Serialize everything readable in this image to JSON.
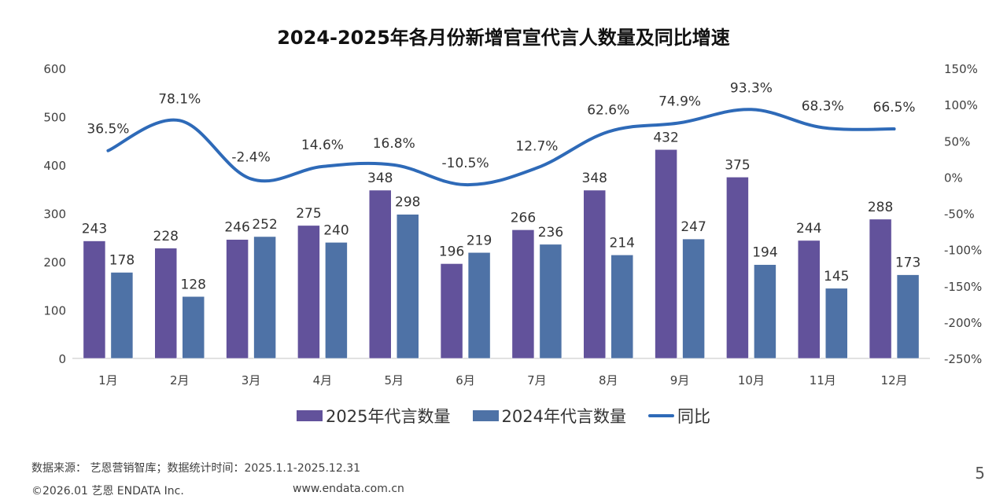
{
  "chart_data": {
    "type": "bar",
    "title": "2024-2025年各月份新增官宣代言人数量及同比增速",
    "categories": [
      "1月",
      "2月",
      "3月",
      "4月",
      "5月",
      "6月",
      "7月",
      "8月",
      "9月",
      "10月",
      "11月",
      "12月"
    ],
    "series": [
      {
        "name": "2025年代言数量",
        "type": "bar",
        "axis": "left",
        "color": "#62529b",
        "values": [
          243,
          228,
          246,
          275,
          348,
          196,
          266,
          348,
          432,
          375,
          244,
          288
        ]
      },
      {
        "name": "2024年代言数量",
        "type": "bar",
        "axis": "left",
        "color": "#4e72a6",
        "values": [
          178,
          128,
          252,
          240,
          298,
          219,
          236,
          214,
          247,
          194,
          145,
          173
        ]
      },
      {
        "name": "同比",
        "type": "line",
        "axis": "right",
        "color": "#2e6ab8",
        "smooth": true,
        "values": [
          36.5,
          78.1,
          -2.4,
          14.6,
          16.8,
          -10.5,
          12.7,
          62.6,
          74.9,
          93.3,
          68.3,
          66.5
        ],
        "labels": [
          "36.5%",
          "78.1%",
          "-2.4%",
          "14.6%",
          "16.8%",
          "-10.5%",
          "12.7%",
          "62.6%",
          "74.9%",
          "93.3%",
          "68.3%",
          "66.5%"
        ]
      }
    ],
    "y_left": {
      "range": [
        0,
        600
      ],
      "ticks": [
        0,
        100,
        200,
        300,
        400,
        500,
        600
      ],
      "tick_labels": [
        "0",
        "100",
        "200",
        "300",
        "400",
        "500",
        "600"
      ]
    },
    "y_right": {
      "range": [
        -250,
        150
      ],
      "ticks": [
        -250,
        -200,
        -150,
        -100,
        -50,
        0,
        50,
        100,
        150
      ],
      "tick_labels": [
        "-250%",
        "-200%",
        "-150%",
        "-100%",
        "-50%",
        "0%",
        "50%",
        "100%",
        "150%"
      ]
    },
    "xlabel": "",
    "ylabel": "",
    "grid": false,
    "legend": "bottom"
  },
  "legend": {
    "items": [
      {
        "label": "2025年代言数量",
        "color": "#62529b",
        "kind": "box"
      },
      {
        "label": "2024年代言数量",
        "color": "#4e72a6",
        "kind": "box"
      },
      {
        "label": "同比",
        "color": "#2e6ab8",
        "kind": "line"
      }
    ]
  },
  "footer": {
    "source": "数据来源： 艺恩营销智库；数据统计时间：2025.1.1-2025.12.31",
    "copyright": "©2026.01 艺恩 ENDATA Inc.",
    "url": "www.endata.com.cn",
    "page_number": "5"
  }
}
